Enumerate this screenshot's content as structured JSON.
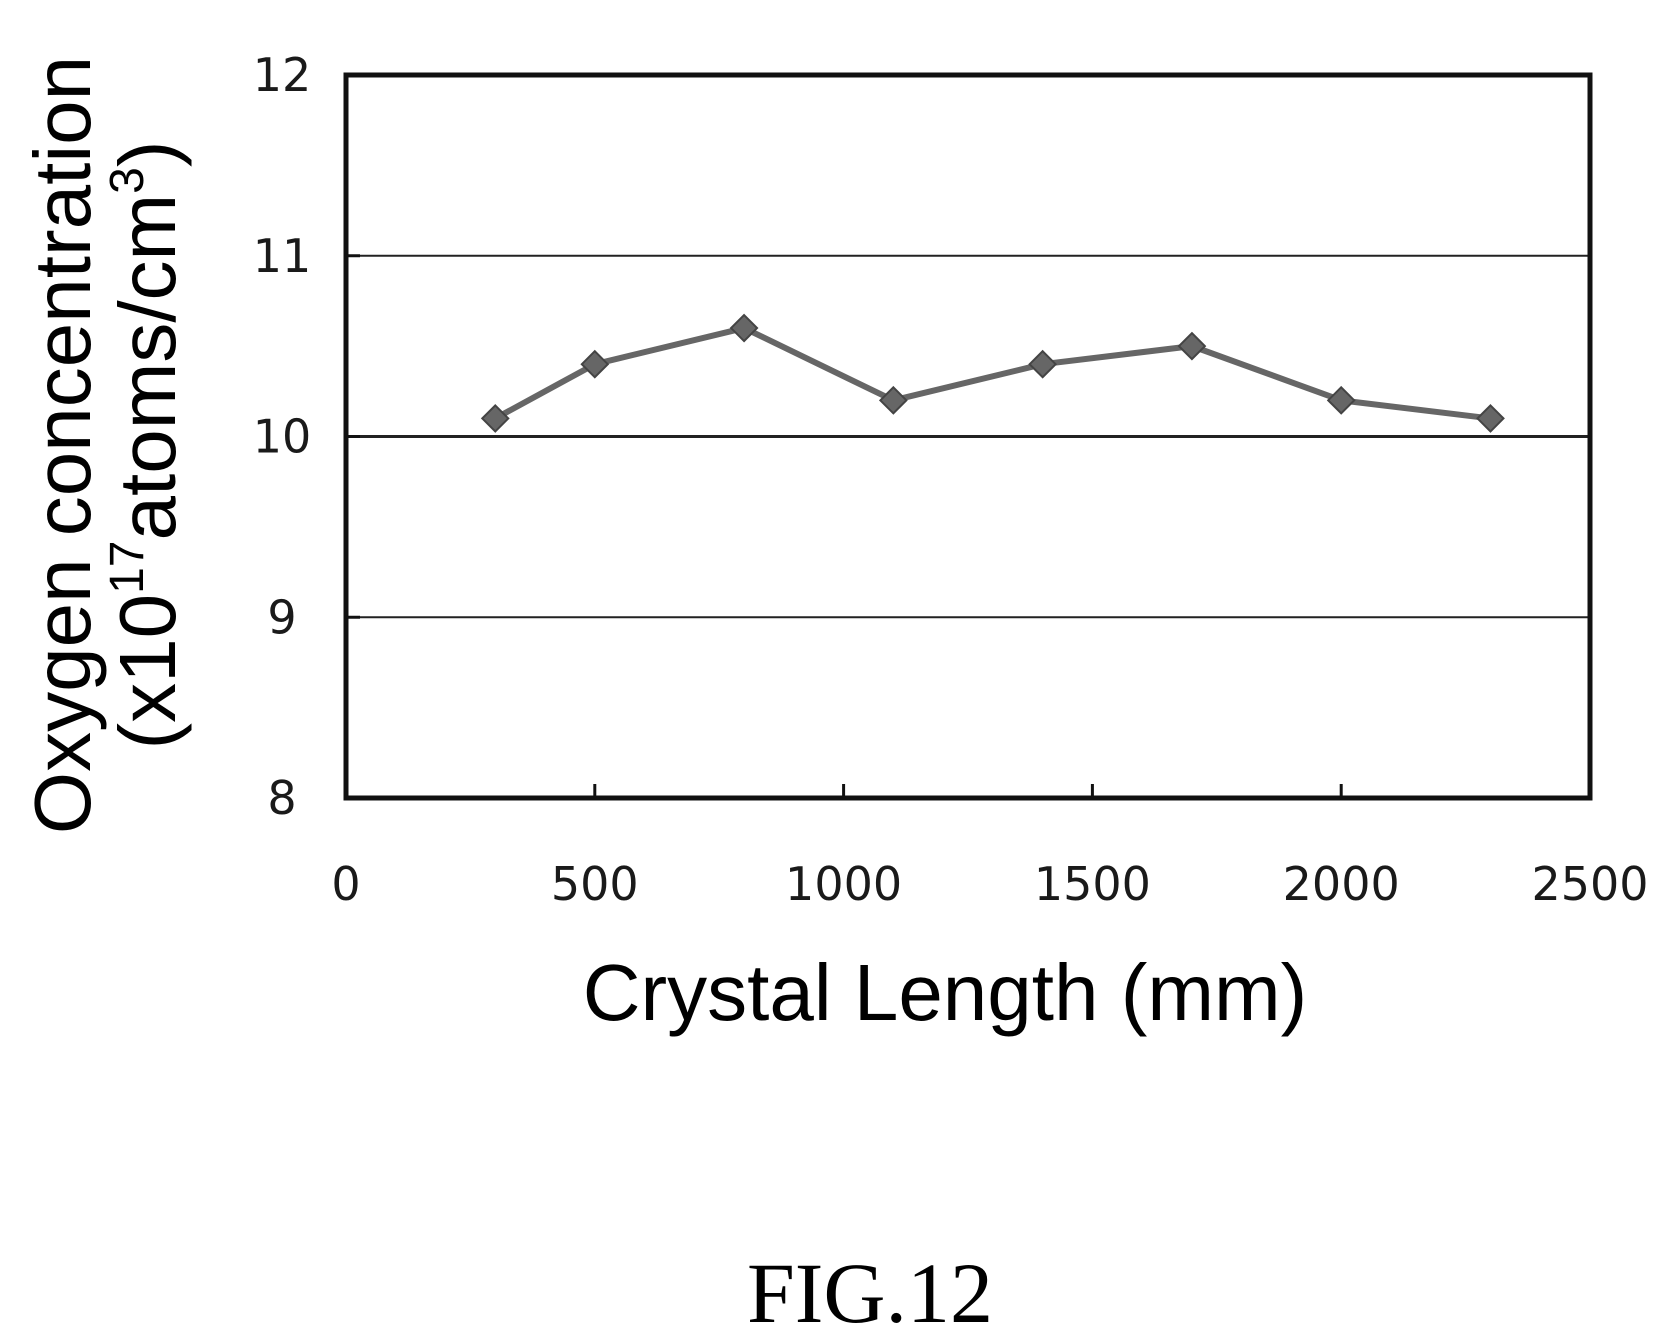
{
  "chart_data": {
    "type": "line",
    "xlabel": "Crystal Length (mm)",
    "ylabel": {
      "line1": "Oxygen concentration",
      "line2_prefix": "(x10",
      "line2_exp": "17",
      "line2_mid": "atoms/cm",
      "line2_exp2": "3",
      "line2_suffix": ")"
    },
    "xlim": [
      0,
      2500
    ],
    "ylim": [
      8,
      12
    ],
    "xticks": [
      0,
      500,
      1000,
      1500,
      2000,
      2500
    ],
    "xtick_labels": [
      "0",
      "500",
      "1000",
      "1500",
      "2000",
      "2500"
    ],
    "yticks": [
      8,
      9,
      10,
      11,
      12
    ],
    "ytick_labels": [
      "8",
      "9",
      "10",
      "11",
      "12"
    ],
    "grid": "horizontal",
    "marker": "diamond",
    "series": [
      {
        "x": [
          300,
          500,
          800,
          1100,
          1400,
          1700,
          2000,
          2300
        ],
        "y": [
          10.1,
          10.4,
          10.6,
          10.2,
          10.4,
          10.5,
          10.2,
          10.1
        ]
      }
    ]
  },
  "figure_label": "FIG.12",
  "colors": {
    "line": "#666666",
    "axis": "#111111",
    "grid": "#222222"
  }
}
